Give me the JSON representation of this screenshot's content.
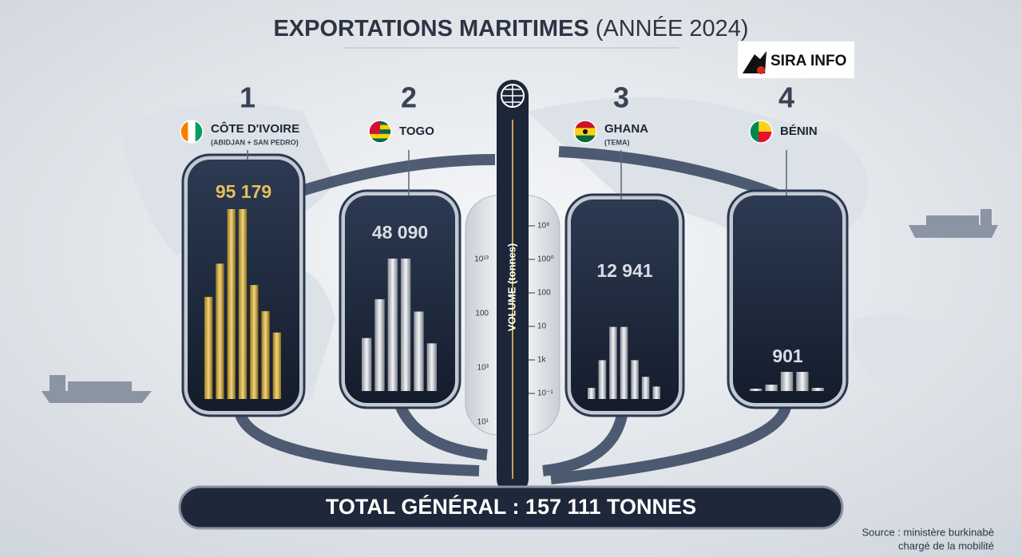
{
  "title": "EXPORTATIONS MARITIMES",
  "title_suffix": "(ANNÉE 2024)",
  "logo": "SIRA INFO",
  "panels": [
    {
      "rank": "1",
      "name": "CÔTE D'IVOIRE",
      "sublabel": "(ABIDJAN + SAN PEDRO)",
      "value": "95 179"
    },
    {
      "rank": "2",
      "name": "TOGO",
      "value": "48 090"
    },
    {
      "rank": "3",
      "name": "GHANA",
      "sublabel": "(TEMA)",
      "value": "12 941"
    },
    {
      "rank": "4",
      "name": "BÉNIN",
      "value": "901"
    }
  ],
  "axis": {
    "label": "VOLUME (tonnes)",
    "left_ticks": [
      "10¹³",
      "100",
      "10³",
      "10¹"
    ],
    "right_ticks": [
      "10⁸",
      "100⁰",
      "100",
      "10",
      "1k",
      "10⁻¹"
    ]
  },
  "total": "TOTAL GÉNÉRAL : 157 111 TONNES",
  "source": [
    "Source : ministère burkinabè",
    "chargé de la mobilité"
  ]
}
